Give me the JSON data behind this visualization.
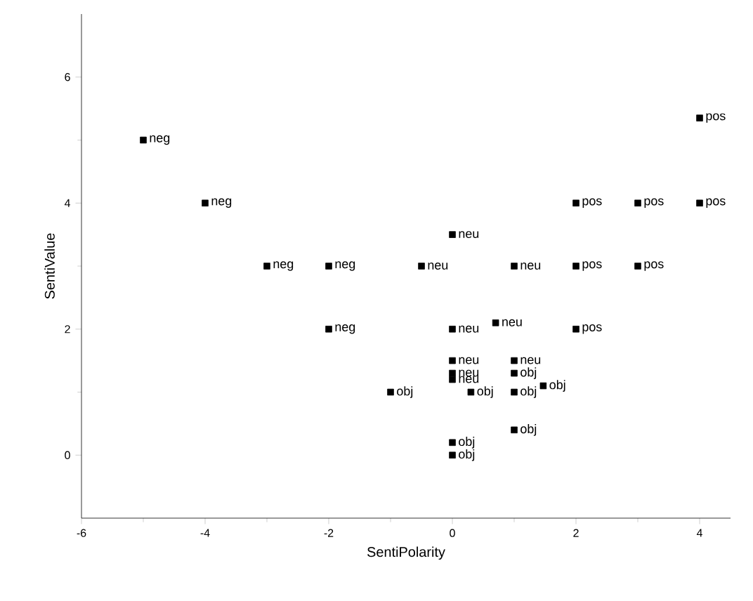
{
  "chart_data": {
    "type": "scatter",
    "xlabel": "SentiPolarity",
    "ylabel": "SentiValue",
    "marker": "square",
    "grid": false,
    "xlim": [
      -6,
      4.5
    ],
    "ylim": [
      -1,
      7
    ],
    "xticks": [
      -6,
      -4,
      -2,
      0,
      2,
      4
    ],
    "yticks": [
      0,
      2,
      4,
      6
    ],
    "series": [
      {
        "color": "#000000",
        "x": [
          -5,
          -4,
          -3,
          -2,
          -2,
          -0.5,
          0,
          1,
          0,
          0.7,
          0,
          0,
          0,
          1,
          1,
          -1,
          0.3,
          1,
          1.47,
          1,
          0,
          0,
          2,
          3,
          4,
          2,
          3,
          2,
          4
        ],
        "values": [
          5,
          4,
          3,
          3,
          2,
          3,
          3.5,
          3,
          2,
          2.1,
          1.5,
          1.3,
          1.2,
          1.5,
          1.3,
          1,
          1,
          1,
          1.1,
          0.4,
          0.2,
          0,
          4,
          4,
          4,
          3,
          3,
          2,
          5.35
        ]
      }
    ],
    "annotations": [
      {
        "text": "neg",
        "x": -5,
        "y": 5
      },
      {
        "text": "neg",
        "x": -4,
        "y": 4
      },
      {
        "text": "neg",
        "x": -3,
        "y": 3
      },
      {
        "text": "neg",
        "x": -2,
        "y": 3
      },
      {
        "text": "neg",
        "x": -2,
        "y": 2
      },
      {
        "text": "neu",
        "x": -0.5,
        "y": 3
      },
      {
        "text": "neu",
        "x": 0,
        "y": 3.5
      },
      {
        "text": "neu",
        "x": 1,
        "y": 3
      },
      {
        "text": "neu",
        "x": 0,
        "y": 2
      },
      {
        "text": "neu",
        "x": 0.7,
        "y": 2.1
      },
      {
        "text": "neu",
        "x": 0,
        "y": 1.5
      },
      {
        "text": "neu",
        "x": 0,
        "y": 1.3
      },
      {
        "text": "neu",
        "x": 0,
        "y": 1.2
      },
      {
        "text": "neu",
        "x": 1,
        "y": 1.5
      },
      {
        "text": "obj",
        "x": 1,
        "y": 1.3
      },
      {
        "text": "obj",
        "x": -1,
        "y": 1
      },
      {
        "text": "obj",
        "x": 0.3,
        "y": 1
      },
      {
        "text": "obj",
        "x": 1,
        "y": 1
      },
      {
        "text": "obj",
        "x": 1.47,
        "y": 1.1
      },
      {
        "text": "obj",
        "x": 1,
        "y": 0.4
      },
      {
        "text": "obj",
        "x": 0,
        "y": 0.2
      },
      {
        "text": "obj",
        "x": 0,
        "y": 0
      },
      {
        "text": "pos",
        "x": 2,
        "y": 4
      },
      {
        "text": "pos",
        "x": 3,
        "y": 4
      },
      {
        "text": "pos",
        "x": 4,
        "y": 4
      },
      {
        "text": "pos",
        "x": 2,
        "y": 3
      },
      {
        "text": "pos",
        "x": 3,
        "y": 3
      },
      {
        "text": "pos",
        "x": 2,
        "y": 2
      },
      {
        "text": "pos",
        "x": 4,
        "y": 5.35
      }
    ]
  }
}
